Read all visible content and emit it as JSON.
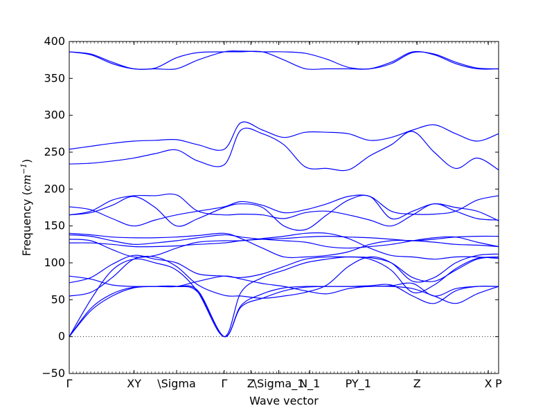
{
  "colors": {
    "band": "#0000ff",
    "axis": "#000000",
    "zero_line": "#000000"
  },
  "chart_data": {
    "type": "line",
    "title": "",
    "xlabel": "Wave vector",
    "ylabel": "Frequency (",
    "ylabel_unit": "cm",
    "ylabel_sup": "−1",
    "ylabel_close": ")",
    "ylim": [
      -50,
      400
    ],
    "yticks": [
      -50,
      0,
      50,
      100,
      150,
      200,
      250,
      300,
      350,
      400
    ],
    "xlim": [
      0,
      1
    ],
    "grid": false,
    "zero_line": true,
    "kpoints": [
      {
        "label": "Γ",
        "x": 0.0
      },
      {
        "label": "XY",
        "x": 0.151
      },
      {
        "label": "\\Sigma",
        "x": 0.25
      },
      {
        "label": "Γ",
        "x": 0.361
      },
      {
        "label": "Z",
        "x": 0.423
      },
      {
        "label": "\\Sigma_1",
        "x": 0.488
      },
      {
        "label": "N_1",
        "x": 0.56
      },
      {
        "label": "PY_1",
        "x": 0.673
      },
      {
        "label": "Z",
        "x": 0.81
      },
      {
        "label": "X",
        "x": 0.976
      },
      {
        "label": "P",
        "x": 1.0
      }
    ],
    "series": [
      {
        "x": [
          0,
          0.05,
          0.1,
          0.15,
          0.2,
          0.25,
          0.3,
          0.361,
          0.4,
          0.45,
          0.5,
          0.55,
          0.6,
          0.65,
          0.7,
          0.75,
          0.8,
          0.85,
          0.9,
          0.95,
          1.0
        ],
        "y": [
          0,
          35,
          55,
          66,
          68,
          68,
          60,
          0,
          40,
          52,
          62,
          67,
          68,
          68,
          68,
          69,
          72,
          55,
          65,
          68,
          68
        ]
      },
      {
        "x": [
          0,
          0.05,
          0.1,
          0.15,
          0.2,
          0.25,
          0.3,
          0.361,
          0.4,
          0.45,
          0.5,
          0.55,
          0.6,
          0.65,
          0.7,
          0.75,
          0.8,
          0.85,
          0.9,
          0.95,
          1.0
        ],
        "y": [
          0,
          38,
          58,
          67,
          68,
          68,
          62,
          0,
          42,
          58,
          66,
          68,
          68,
          68,
          69,
          70,
          55,
          45,
          62,
          68,
          68
        ]
      },
      {
        "x": [
          0,
          0.05,
          0.1,
          0.15,
          0.2,
          0.25,
          0.3,
          0.361,
          0.4,
          0.45,
          0.5,
          0.55,
          0.6,
          0.65,
          0.7,
          0.75,
          0.8,
          0.85,
          0.9,
          0.95,
          1.0
        ],
        "y": [
          0,
          50,
          90,
          105,
          100,
          90,
          60,
          0,
          60,
          80,
          90,
          100,
          105,
          108,
          105,
          90,
          60,
          70,
          92,
          106,
          108
        ]
      },
      {
        "x": [
          0,
          0.05,
          0.1,
          0.15,
          0.2,
          0.25,
          0.3,
          0.361,
          0.4,
          0.45,
          0.5,
          0.55,
          0.6,
          0.65,
          0.7,
          0.75,
          0.8,
          0.85,
          0.9,
          0.95,
          1.0
        ],
        "y": [
          55,
          60,
          80,
          105,
          108,
          95,
          70,
          56,
          55,
          52,
          55,
          60,
          70,
          95,
          108,
          100,
          75,
          80,
          100,
          110,
          112
        ]
      },
      {
        "x": [
          0,
          0.05,
          0.1,
          0.15,
          0.2,
          0.25,
          0.3,
          0.361,
          0.4,
          0.45,
          0.5,
          0.55,
          0.6,
          0.65,
          0.7,
          0.75,
          0.8,
          0.85,
          0.9,
          0.95,
          1.0
        ],
        "y": [
          73,
          80,
          98,
          110,
          105,
          100,
          85,
          82,
          80,
          85,
          95,
          105,
          108,
          108,
          107,
          100,
          80,
          75,
          90,
          105,
          108
        ]
      },
      {
        "x": [
          0,
          0.05,
          0.1,
          0.15,
          0.2,
          0.25,
          0.3,
          0.361,
          0.4,
          0.45,
          0.5,
          0.55,
          0.6,
          0.65,
          0.7,
          0.75,
          0.8,
          0.85,
          0.9,
          0.95,
          1.0
        ],
        "y": [
          82,
          78,
          70,
          68,
          68,
          68,
          75,
          82,
          78,
          72,
          68,
          62,
          58,
          65,
          68,
          68,
          65,
          55,
          45,
          58,
          68
        ]
      },
      {
        "x": [
          0,
          0.05,
          0.1,
          0.15,
          0.2,
          0.25,
          0.3,
          0.361,
          0.4,
          0.45,
          0.5,
          0.55,
          0.6,
          0.65,
          0.7,
          0.75,
          0.8,
          0.85,
          0.9,
          0.95,
          1.0
        ],
        "y": [
          127,
          127,
          125,
          122,
          122,
          123,
          125,
          127,
          130,
          132,
          133,
          135,
          136,
          135,
          134,
          132,
          130,
          132,
          135,
          136,
          136
        ]
      },
      {
        "x": [
          0,
          0.05,
          0.1,
          0.15,
          0.2,
          0.25,
          0.3,
          0.361,
          0.4,
          0.45,
          0.5,
          0.55,
          0.6,
          0.65,
          0.7,
          0.75,
          0.8,
          0.85,
          0.9,
          0.95,
          1.0
        ],
        "y": [
          138,
          136,
          130,
          125,
          127,
          130,
          134,
          138,
          135,
          132,
          130,
          128,
          122,
          120,
          122,
          125,
          130,
          134,
          135,
          128,
          122
        ]
      },
      {
        "x": [
          0,
          0.05,
          0.1,
          0.15,
          0.2,
          0.25,
          0.3,
          0.361,
          0.4,
          0.45,
          0.5,
          0.55,
          0.6,
          0.65,
          0.7,
          0.75,
          0.8,
          0.85,
          0.9,
          0.95,
          1.0
        ],
        "y": [
          140,
          138,
          135,
          134,
          134,
          135,
          137,
          140,
          133,
          120,
          108,
          108,
          110,
          115,
          125,
          130,
          130,
          128,
          125,
          124,
          122
        ]
      },
      {
        "x": [
          0,
          0.05,
          0.1,
          0.15,
          0.2,
          0.25,
          0.3,
          0.361,
          0.4,
          0.45,
          0.5,
          0.55,
          0.6,
          0.65,
          0.7,
          0.75,
          0.8,
          0.85,
          0.9,
          0.95,
          1.0
        ],
        "y": [
          132,
          130,
          118,
          108,
          110,
          120,
          128,
          130,
          130,
          133,
          136,
          140,
          140,
          133,
          120,
          110,
          108,
          105,
          108,
          108,
          106
        ]
      },
      {
        "x": [
          0,
          0.05,
          0.1,
          0.15,
          0.2,
          0.25,
          0.3,
          0.361,
          0.4,
          0.45,
          0.5,
          0.55,
          0.6,
          0.65,
          0.7,
          0.75,
          0.8,
          0.85,
          0.9,
          0.95,
          1.0
        ],
        "y": [
          165,
          168,
          178,
          190,
          175,
          150,
          160,
          175,
          180,
          175,
          150,
          145,
          165,
          185,
          190,
          160,
          170,
          180,
          175,
          170,
          157
        ]
      },
      {
        "x": [
          0,
          0.05,
          0.1,
          0.15,
          0.2,
          0.25,
          0.3,
          0.361,
          0.4,
          0.45,
          0.5,
          0.55,
          0.6,
          0.65,
          0.7,
          0.75,
          0.8,
          0.85,
          0.9,
          0.95,
          1.0
        ],
        "y": [
          176,
          172,
          160,
          150,
          158,
          165,
          170,
          176,
          183,
          178,
          168,
          172,
          180,
          190,
          190,
          170,
          166,
          166,
          170,
          185,
          191
        ]
      },
      {
        "x": [
          0,
          0.05,
          0.1,
          0.15,
          0.2,
          0.25,
          0.3,
          0.361,
          0.4,
          0.45,
          0.5,
          0.55,
          0.6,
          0.65,
          0.7,
          0.75,
          0.8,
          0.85,
          0.9,
          0.95,
          1.0
        ],
        "y": [
          165,
          170,
          185,
          191,
          191,
          192,
          170,
          165,
          166,
          165,
          160,
          168,
          170,
          165,
          158,
          150,
          165,
          180,
          170,
          160,
          158
        ]
      },
      {
        "x": [
          0,
          0.05,
          0.1,
          0.15,
          0.2,
          0.25,
          0.3,
          0.361,
          0.4,
          0.45,
          0.5,
          0.55,
          0.6,
          0.65,
          0.7,
          0.75,
          0.8,
          0.85,
          0.9,
          0.95,
          1.0
        ],
        "y": [
          234,
          235,
          238,
          242,
          248,
          253,
          238,
          233,
          280,
          275,
          260,
          230,
          228,
          226,
          245,
          260,
          278,
          250,
          228,
          242,
          226
        ]
      },
      {
        "x": [
          0,
          0.05,
          0.1,
          0.15,
          0.2,
          0.25,
          0.3,
          0.361,
          0.4,
          0.45,
          0.5,
          0.55,
          0.6,
          0.65,
          0.7,
          0.75,
          0.8,
          0.85,
          0.9,
          0.95,
          1.0
        ],
        "y": [
          254,
          258,
          262,
          265,
          266,
          267,
          260,
          254,
          290,
          280,
          270,
          277,
          277,
          275,
          266,
          270,
          280,
          287,
          275,
          265,
          275
        ]
      },
      {
        "x": [
          0,
          0.05,
          0.1,
          0.15,
          0.2,
          0.25,
          0.3,
          0.361,
          0.4,
          0.45,
          0.5,
          0.55,
          0.6,
          0.65,
          0.7,
          0.75,
          0.8,
          0.85,
          0.9,
          0.95,
          1.0
        ],
        "y": [
          386,
          382,
          370,
          363,
          364,
          378,
          385,
          386,
          386,
          386,
          375,
          363,
          363,
          363,
          363,
          372,
          386,
          382,
          370,
          363,
          363
        ]
      },
      {
        "x": [
          0,
          0.05,
          0.1,
          0.15,
          0.2,
          0.25,
          0.3,
          0.361,
          0.4,
          0.45,
          0.5,
          0.55,
          0.6,
          0.65,
          0.7,
          0.75,
          0.8,
          0.85,
          0.9,
          0.95,
          1.0
        ],
        "y": [
          386,
          383,
          372,
          363,
          363,
          363,
          375,
          386,
          387,
          386,
          386,
          384,
          376,
          365,
          363,
          370,
          385,
          383,
          372,
          364,
          363
        ]
      }
    ]
  }
}
